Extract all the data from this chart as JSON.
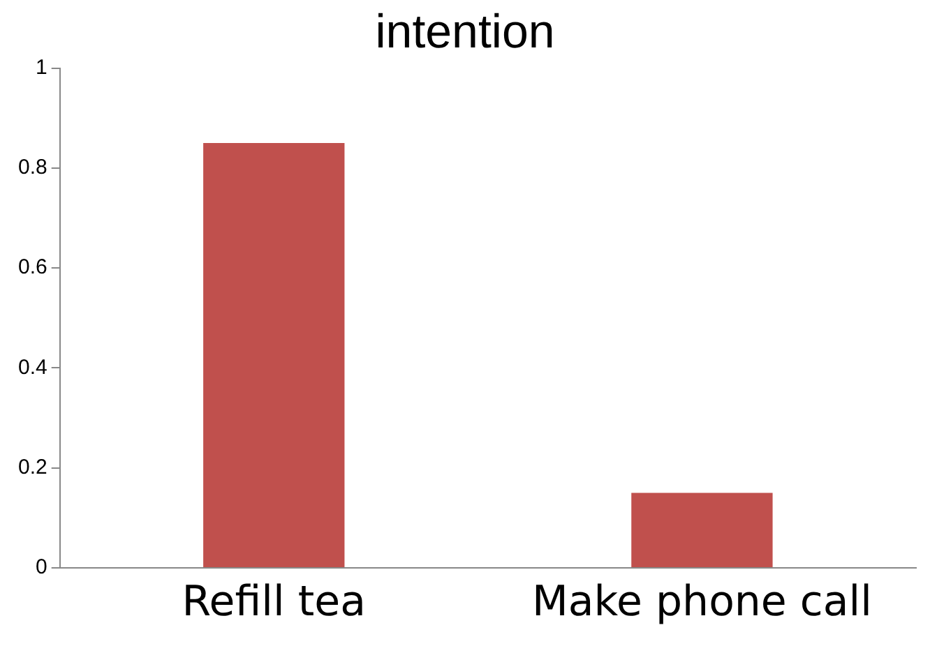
{
  "chart_data": {
    "type": "bar",
    "title": "intention",
    "categories": [
      "Refill tea",
      "Make phone call"
    ],
    "values": [
      0.85,
      0.15
    ],
    "color": "#c0504d",
    "ylim": [
      0,
      1
    ],
    "yticks": [
      0,
      0.2,
      0.4,
      0.6,
      0.8,
      1
    ],
    "grid": false,
    "legend": false
  }
}
